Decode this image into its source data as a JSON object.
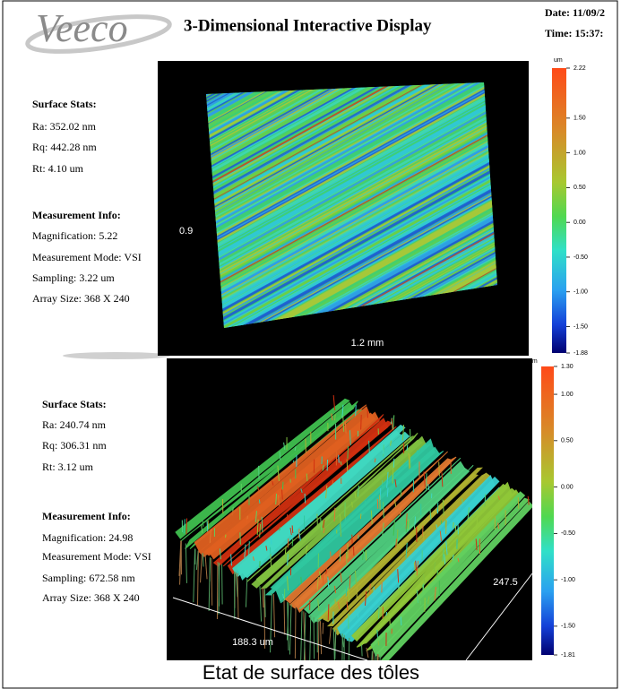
{
  "header": {
    "logo": "Veeco",
    "title": "3-Dimensional Interactive Display",
    "date": "Date: 11/09/2",
    "time": "Time: 15:37:"
  },
  "panels": [
    {
      "surface_stats": {
        "heading": "Surface Stats:",
        "lines": [
          "Ra: 352.02 nm",
          "Rq: 442.28 nm",
          "Rt: 4.10 um"
        ]
      },
      "measurement_info": {
        "heading": "Measurement Info:",
        "lines": [
          "Magnification: 5.22",
          "Measurement Mode: VSI",
          "Sampling: 3.22 um",
          "Array Size: 368 X 240"
        ]
      },
      "plot_labels": [
        "0.9",
        "1.2 mm"
      ],
      "colorbar": {
        "unit": "um",
        "ticks": [
          "2.22",
          "1.50",
          "1.00",
          "0.50",
          "0.00",
          "-0.50",
          "-1.00",
          "-1.50",
          "-1.88"
        ]
      }
    },
    {
      "surface_stats": {
        "heading": "Surface Stats:",
        "lines": [
          "Ra: 240.74 nm",
          "Rq: 306.31 nm",
          "Rt: 3.12 um"
        ]
      },
      "measurement_info": {
        "heading": "Measurement Info:",
        "lines": [
          "Magnification: 24.98",
          "Measurement Mode: VSI",
          "Sampling: 672.58 nm",
          "Array Size: 368 X 240"
        ]
      },
      "plot_labels": [
        "247.5",
        "188.3 um"
      ],
      "colorbar": {
        "unit": "um",
        "ticks": [
          "1.30",
          "1.00",
          "0.50",
          "0.00",
          "-0.50",
          "-1.00",
          "-1.50",
          "-1.81"
        ]
      }
    }
  ],
  "caption": "Etat de surface des tôles"
}
